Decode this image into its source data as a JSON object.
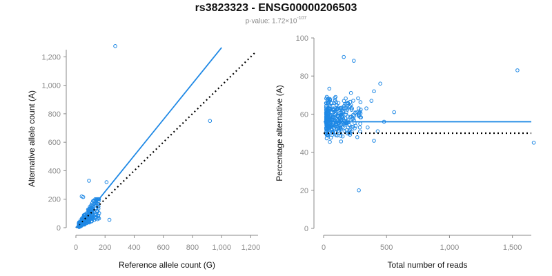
{
  "title": "rs3823323 - ENSG00000206503",
  "subtitle": {
    "prefix": "p-value: 1.72×10",
    "exponent": "-107"
  },
  "colors": {
    "points": "#1e88e5",
    "fit": "#1e88e5",
    "reference": "#000000",
    "axis": "#8a8a8a"
  },
  "chart_data": [
    {
      "type": "scatter",
      "xlabel": "Reference allele count (G)",
      "ylabel": "Alternative allele count (A)",
      "xlim": [
        0,
        1250
      ],
      "ylim": [
        0,
        1250
      ],
      "xticks": [
        0,
        200,
        400,
        600,
        800,
        1000,
        1200
      ],
      "xtick_labels": [
        "0",
        "200",
        "400",
        "600",
        "800",
        "1,000",
        "1,200"
      ],
      "yticks": [
        0,
        200,
        400,
        600,
        800,
        1000,
        1200
      ],
      "ytick_labels": [
        "0",
        "200",
        "400",
        "600",
        "800",
        "1,000",
        "1,200"
      ],
      "fit_line": {
        "x": [
          0,
          1000
        ],
        "y": [
          0,
          1265
        ],
        "style": "solid"
      },
      "reference_line": {
        "x": [
          0,
          1230
        ],
        "y": [
          0,
          1230
        ],
        "style": "dotted"
      },
      "outliers": [
        [
          270,
          1275
        ],
        [
          920,
          750
        ],
        [
          230,
          55
        ],
        [
          210,
          320
        ],
        [
          90,
          330
        ],
        [
          40,
          220
        ],
        [
          50,
          215
        ],
        [
          150,
          200
        ]
      ],
      "cluster": {
        "x_range": [
          20,
          160
        ],
        "y_range": [
          0,
          200
        ],
        "count": 260
      }
    },
    {
      "type": "scatter",
      "xlabel": "Total number of reads",
      "ylabel": "Percentage alternative (A)",
      "xlim": [
        0,
        1650
      ],
      "ylim": [
        0,
        100
      ],
      "xticks": [
        0,
        500,
        1000,
        1500
      ],
      "xtick_labels": [
        "0",
        "500",
        "1,000",
        "1,500"
      ],
      "yticks": [
        0,
        20,
        40,
        60,
        80,
        100
      ],
      "ytick_labels": [
        "0",
        "20",
        "40",
        "60",
        "80",
        "100"
      ],
      "fit_line": {
        "y": 56,
        "style": "solid"
      },
      "reference_line": {
        "y": 50,
        "style": "dotted"
      },
      "outliers": [
        [
          1540,
          83
        ],
        [
          1670,
          45
        ],
        [
          560,
          61
        ],
        [
          450,
          76
        ],
        [
          430,
          51
        ],
        [
          480,
          56
        ],
        [
          400,
          72
        ],
        [
          400,
          46
        ],
        [
          280,
          20
        ],
        [
          160,
          90
        ],
        [
          240,
          88
        ],
        [
          380,
          67
        ],
        [
          350,
          53
        ],
        [
          340,
          63
        ]
      ],
      "cluster": {
        "x_range": [
          20,
          300
        ],
        "y_range": [
          16,
          90
        ],
        "count": 330
      }
    }
  ]
}
